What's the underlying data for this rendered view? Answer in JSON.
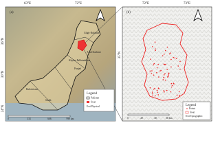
{
  "panel_a": {
    "label": "(a)",
    "lon_labels": [
      "63°E",
      "72°E"
    ],
    "lat_labels": [
      "36°N",
      "30°N",
      "24°N"
    ],
    "regions": [
      "Gilgit-Baltistan",
      "Azad Kashmir",
      "Khyber Pakhtunkhwa",
      "Punjab",
      "Balochistan",
      "Sindh"
    ],
    "legend": {
      "title": "Legend",
      "items": [
        "Pakistan",
        "Swat",
        "Esri Physical"
      ]
    },
    "scale": [
      "0",
      "333",
      "666",
      "999 km"
    ]
  },
  "panel_b": {
    "label": "(b)",
    "lon_labels": [
      "72°E",
      "73°E"
    ],
    "lat_labels": [
      "35°N"
    ],
    "legend": {
      "title": "Legend",
      "items": [
        "Points",
        "Swat",
        "Esri Topographic"
      ]
    },
    "scale": [
      "0",
      "20",
      "40",
      "60 km"
    ]
  }
}
